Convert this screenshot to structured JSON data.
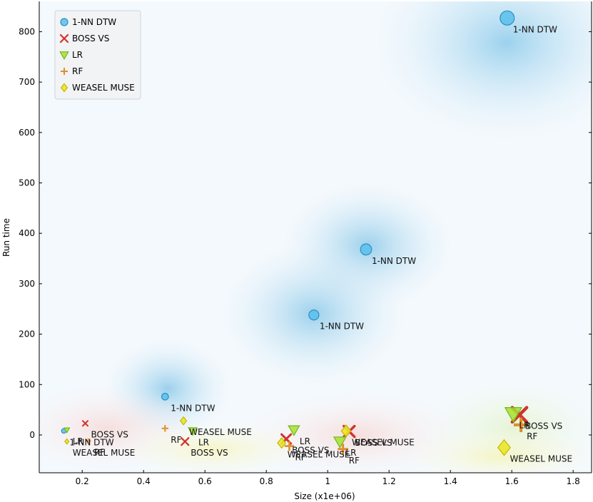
{
  "chart_data": {
    "type": "scatter",
    "xlabel": "Size (x1e+06)",
    "ylabel": "Run time",
    "xlim": [
      0.06,
      1.86
    ],
    "ylim": [
      -75,
      860
    ],
    "xticks": [
      {
        "v": 0.2,
        "label": "0.2"
      },
      {
        "v": 0.4,
        "label": "0.4"
      },
      {
        "v": 0.6,
        "label": "0.6"
      },
      {
        "v": 0.8,
        "label": "0.8"
      },
      {
        "v": 1.0,
        "label": "1"
      },
      {
        "v": 1.2,
        "label": "1.2"
      },
      {
        "v": 1.4,
        "label": "1.4"
      },
      {
        "v": 1.6,
        "label": "1.6"
      },
      {
        "v": 1.8,
        "label": "1.8"
      }
    ],
    "yticks": [
      {
        "v": 0,
        "label": "0"
      },
      {
        "v": 100,
        "label": "100"
      },
      {
        "v": 200,
        "label": "200"
      },
      {
        "v": 300,
        "label": "300"
      },
      {
        "v": 400,
        "label": "400"
      },
      {
        "v": 500,
        "label": "500"
      },
      {
        "v": 600,
        "label": "600"
      },
      {
        "v": 700,
        "label": "700"
      },
      {
        "v": 800,
        "label": "800"
      }
    ],
    "legend_position": "top-left",
    "series": [
      {
        "name": "1-NN DTW",
        "marker": "circle",
        "color": "#5bc0eb",
        "edge": "#2b8fc4",
        "points": [
          {
            "x": 0.14,
            "y": 8,
            "label": "1-NN DTW"
          },
          {
            "x": 0.47,
            "y": 76,
            "label": "1-NN DTW"
          },
          {
            "x": 0.955,
            "y": 238,
            "label": "1-NN DTW"
          },
          {
            "x": 1.125,
            "y": 368,
            "label": "1-NN DTW"
          },
          {
            "x": 1.585,
            "y": 827,
            "label": "1-NN DTW"
          }
        ]
      },
      {
        "name": "BOSS VS",
        "marker": "x",
        "color": "#d0342c",
        "edge": "#d0342c",
        "points": [
          {
            "x": 0.21,
            "y": 23,
            "label": "BOSS VS"
          },
          {
            "x": 0.535,
            "y": -13,
            "label": "BOSS VS"
          },
          {
            "x": 0.865,
            "y": -8,
            "label": "BOSS VS"
          },
          {
            "x": 1.07,
            "y": 7,
            "label": "BOSS VS"
          },
          {
            "x": 1.625,
            "y": 40,
            "label": "BOSS VS"
          }
        ]
      },
      {
        "name": "LR",
        "marker": "triangle",
        "color": "#a6e22e",
        "edge": "#6fb81e",
        "points": [
          {
            "x": 0.15,
            "y": 10,
            "label": "LR"
          },
          {
            "x": 0.56,
            "y": 8,
            "label": "LR"
          },
          {
            "x": 0.89,
            "y": 10,
            "label": "LR"
          },
          {
            "x": 1.04,
            "y": -13,
            "label": "LR"
          },
          {
            "x": 1.605,
            "y": 42,
            "label": "LR"
          }
        ]
      },
      {
        "name": "RF",
        "marker": "plus",
        "color": "#e08e2b",
        "edge": "#e08e2b",
        "points": [
          {
            "x": 0.22,
            "y": -12,
            "label": "RF"
          },
          {
            "x": 0.47,
            "y": 13,
            "label": "RF"
          },
          {
            "x": 0.875,
            "y": -22,
            "label": "RF"
          },
          {
            "x": 1.05,
            "y": -28,
            "label": "RF"
          },
          {
            "x": 1.63,
            "y": 20,
            "label": "RF"
          }
        ]
      },
      {
        "name": "WEASEL MUSE",
        "marker": "diamond",
        "color": "#e8e82a",
        "edge": "#c8b400",
        "points": [
          {
            "x": 0.15,
            "y": -13,
            "label": "WEASEL MUSE"
          },
          {
            "x": 0.53,
            "y": 28,
            "label": "WEASEL MUSE"
          },
          {
            "x": 0.85,
            "y": -16,
            "label": "WEASEL MUSE"
          },
          {
            "x": 1.06,
            "y": 8,
            "label": "WEASEL MUSE"
          },
          {
            "x": 1.575,
            "y": -25,
            "label": "WEASEL MUSE"
          }
        ]
      }
    ]
  }
}
